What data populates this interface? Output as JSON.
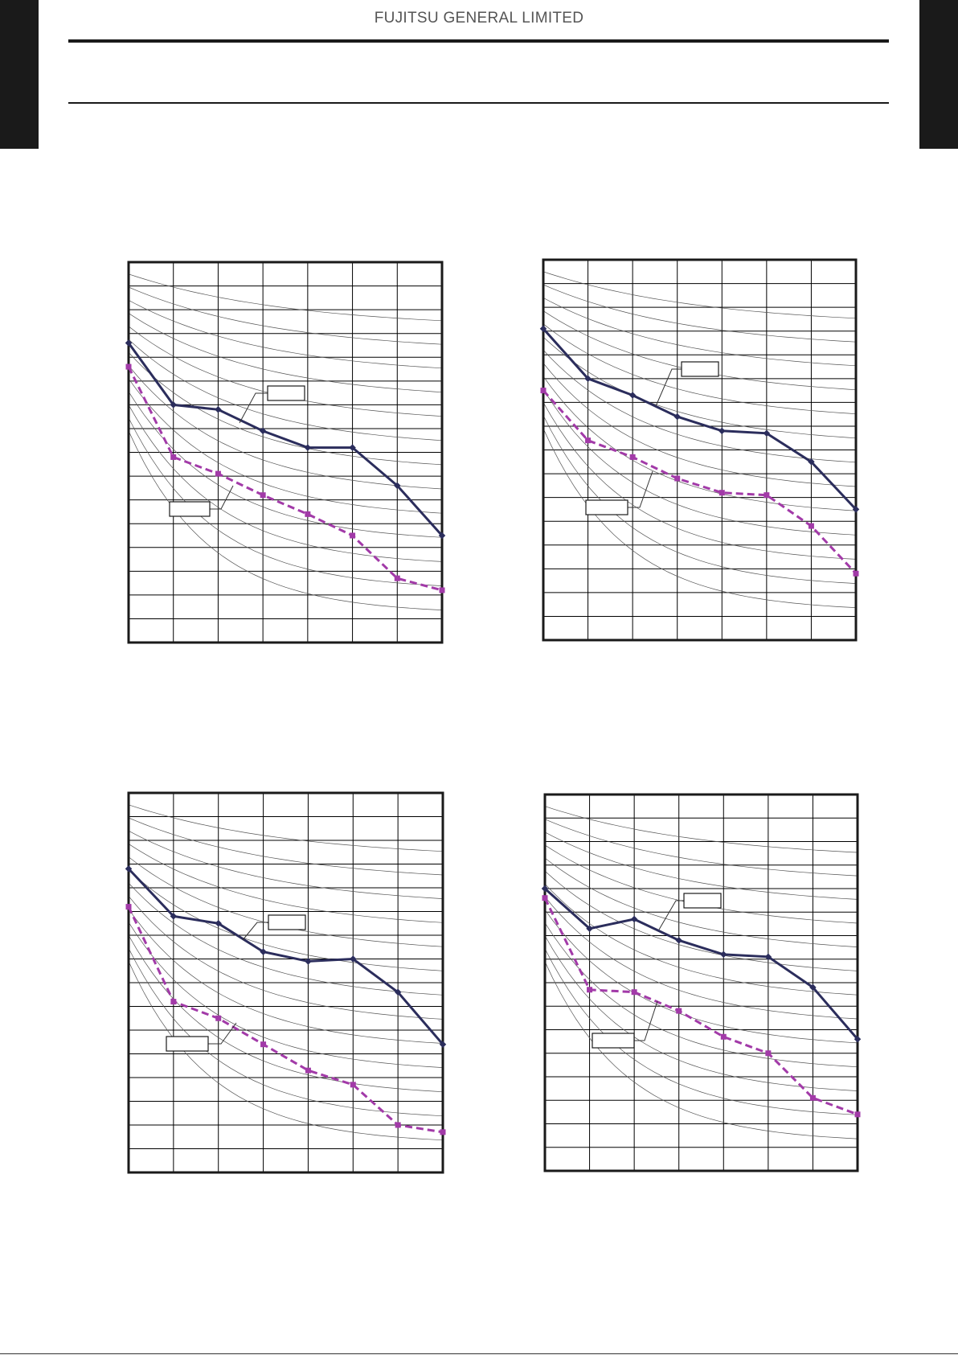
{
  "header": {
    "company": "FUJITSU GENERAL LIMITED"
  },
  "colors": {
    "series_a": "#2b2d5c",
    "series_b": "#a23aa8",
    "grid": "#000000",
    "curve": "#555555"
  },
  "chart_data": [
    {
      "type": "line",
      "title": "",
      "x": [
        0,
        1,
        2,
        3,
        4,
        5,
        6,
        7
      ],
      "xlim": [
        0,
        7
      ],
      "ylim": [
        0,
        16
      ],
      "grid": true,
      "series": [
        {
          "label": "",
          "style": "solid",
          "marker": "diamond",
          "values": [
            12.6,
            10.0,
            9.8,
            8.9,
            8.2,
            8.2,
            6.6,
            4.5
          ]
        },
        {
          "label": "",
          "style": "dashed",
          "marker": "square",
          "values": [
            11.6,
            7.8,
            7.1,
            6.2,
            5.4,
            4.5,
            2.7,
            2.2
          ]
        }
      ],
      "performance_curves": 13
    },
    {
      "type": "line",
      "title": "",
      "x": [
        0,
        1,
        2,
        3,
        4,
        5,
        6,
        7
      ],
      "xlim": [
        0,
        7
      ],
      "ylim": [
        0,
        16
      ],
      "grid": true,
      "series": [
        {
          "label": "",
          "style": "solid",
          "marker": "diamond",
          "values": [
            13.1,
            11.0,
            10.3,
            9.4,
            8.8,
            8.7,
            7.5,
            5.5
          ]
        },
        {
          "label": "",
          "style": "dashed",
          "marker": "square",
          "values": [
            10.5,
            8.4,
            7.7,
            6.8,
            6.2,
            6.1,
            4.8,
            2.8
          ]
        }
      ],
      "performance_curves": 13
    },
    {
      "type": "line",
      "title": "",
      "x": [
        0,
        1,
        2,
        3,
        4,
        5,
        6,
        7
      ],
      "xlim": [
        0,
        7
      ],
      "ylim": [
        0,
        16
      ],
      "grid": true,
      "series": [
        {
          "label": "",
          "style": "solid",
          "marker": "diamond",
          "values": [
            12.8,
            10.8,
            10.5,
            9.3,
            8.9,
            9.0,
            7.6,
            5.4
          ]
        },
        {
          "label": "",
          "style": "dashed",
          "marker": "square",
          "values": [
            11.2,
            7.2,
            6.5,
            5.4,
            4.3,
            3.7,
            2.0,
            1.7
          ]
        }
      ],
      "performance_curves": 13
    },
    {
      "type": "line",
      "title": "",
      "x": [
        0,
        1,
        2,
        3,
        4,
        5,
        6,
        7
      ],
      "xlim": [
        0,
        7
      ],
      "ylim": [
        0,
        16
      ],
      "grid": true,
      "series": [
        {
          "label": "",
          "style": "solid",
          "marker": "diamond",
          "values": [
            12.0,
            10.3,
            10.7,
            9.8,
            9.2,
            9.1,
            7.8,
            5.6
          ]
        },
        {
          "label": "",
          "style": "dashed",
          "marker": "square",
          "values": [
            11.6,
            7.7,
            7.6,
            6.8,
            5.7,
            5.0,
            3.1,
            2.4
          ]
        }
      ],
      "performance_curves": 13
    }
  ]
}
